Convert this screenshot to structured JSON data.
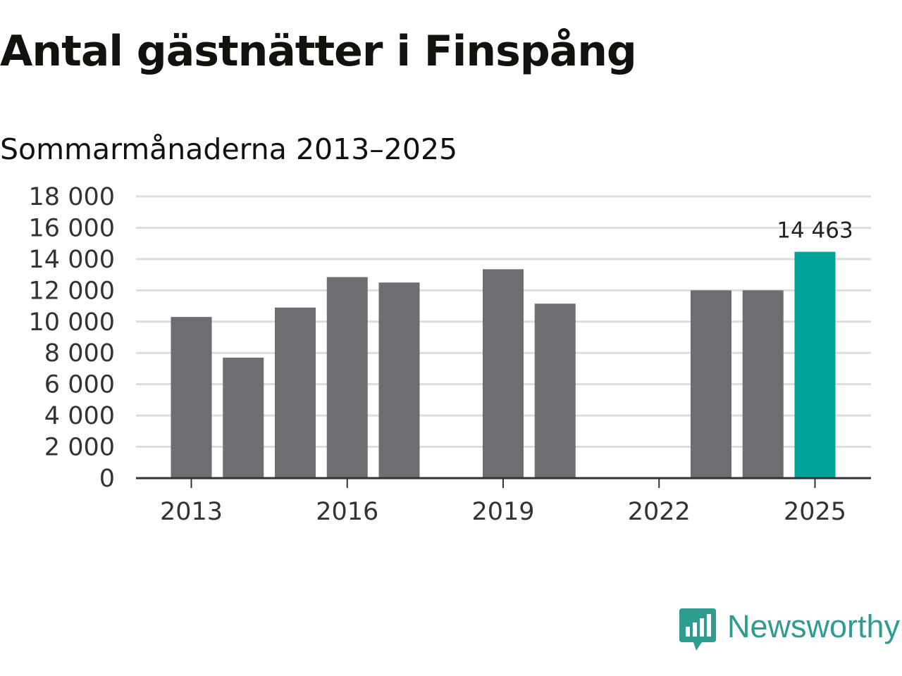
{
  "title": "Antal gästnätter i Finspång",
  "subtitle": "Sommarmånaderna 2013–2025",
  "brand": {
    "name": "Newsworthy",
    "color": "#2f9c90",
    "icon": "newsworthy-logo-icon"
  },
  "colors": {
    "bar": "#6d6d72",
    "highlight": "#00a398",
    "grid": "#dddddd",
    "axis": "#333333"
  },
  "chart_data": {
    "type": "bar",
    "title": "Antal gästnätter i Finspång",
    "subtitle": "Sommarmånaderna 2013–2025",
    "xlabel": "",
    "ylabel": "",
    "categories": [
      "2013",
      "2014",
      "2015",
      "2016",
      "2017",
      "2018",
      "2019",
      "2020",
      "2021",
      "2022",
      "2023",
      "2024",
      "2025"
    ],
    "values": [
      10300,
      7700,
      10900,
      12850,
      12500,
      null,
      13350,
      11150,
      null,
      null,
      12000,
      12000,
      14463
    ],
    "highlight_category": "2025",
    "data_labels": [
      {
        "category": "2025",
        "text": "14 463"
      }
    ],
    "ylim": [
      0,
      18000
    ],
    "yticks": [
      0,
      2000,
      4000,
      6000,
      8000,
      10000,
      12000,
      14000,
      16000,
      18000
    ],
    "ytick_labels": [
      "0",
      "2 000",
      "4 000",
      "6 000",
      "8 000",
      "10 000",
      "12 000",
      "14 000",
      "16 000",
      "18 000"
    ],
    "xticks": [
      "2013",
      "2016",
      "2019",
      "2022",
      "2025"
    ],
    "grid": true,
    "legend": "none"
  }
}
